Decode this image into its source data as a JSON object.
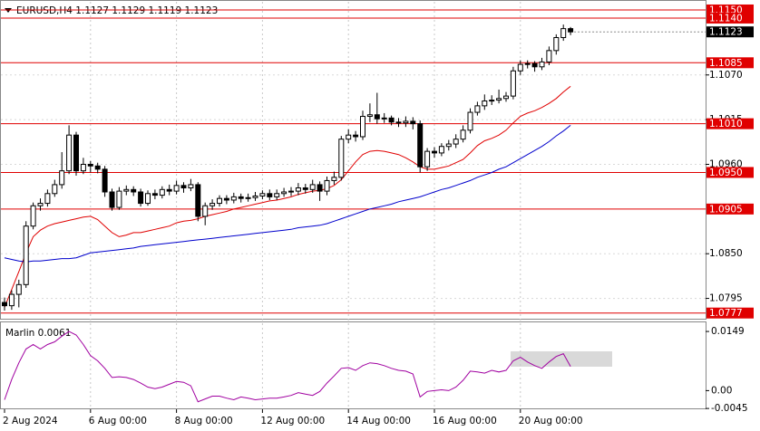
{
  "chart_data": [
    {
      "type": "candlestick",
      "title": "EURUSD,H4  1.1127 1.1129 1.1119 1.1123",
      "categories": [
        "2 Aug 2024",
        null,
        null,
        null,
        null,
        null,
        null,
        null,
        null,
        null,
        null,
        null,
        "6 Aug 00:00",
        null,
        null,
        null,
        null,
        null,
        null,
        null,
        null,
        null,
        null,
        null,
        "8 Aug 00:00",
        null,
        null,
        null,
        null,
        null,
        null,
        null,
        null,
        null,
        null,
        null,
        "12 Aug 00:00",
        null,
        null,
        null,
        null,
        null,
        null,
        null,
        null,
        null,
        null,
        null,
        "14 Aug 00:00",
        null,
        null,
        null,
        null,
        null,
        null,
        null,
        null,
        null,
        null,
        null,
        "16 Aug 00:00",
        null,
        null,
        null,
        null,
        null,
        null,
        null,
        null,
        null,
        null,
        null,
        "20 Aug 00:00",
        null,
        null,
        null,
        null,
        null,
        null,
        null
      ],
      "open": [
        1.079,
        1.0786,
        1.08,
        1.0812,
        1.0884,
        1.0909,
        1.0912,
        1.0924,
        1.0935,
        1.0952,
        1.0996,
        1.0952,
        1.096,
        1.0958,
        1.0954,
        1.0926,
        1.0907,
        1.0927,
        1.0929,
        1.0926,
        1.0912,
        1.0924,
        1.0922,
        1.0929,
        1.0927,
        1.0934,
        1.0931,
        1.0935,
        1.0896,
        1.0909,
        1.0912,
        1.0918,
        1.0916,
        1.092,
        1.0918,
        1.0919,
        1.0921,
        1.0924,
        1.092,
        1.0924,
        1.0926,
        1.0927,
        1.0931,
        1.0929,
        1.0935,
        1.0927,
        1.094,
        1.0944,
        1.0991,
        1.0996,
        1.0994,
        1.1019,
        1.1021,
        1.1016,
        1.1017,
        1.1012,
        1.1011,
        1.1013,
        1.101,
        1.0957,
        1.0976,
        1.0974,
        1.0982,
        1.0985,
        1.0991,
        1.1002,
        1.1024,
        1.1032,
        1.1038,
        1.1039,
        1.1041,
        1.1044,
        1.1075,
        1.1083,
        1.1084,
        1.108,
        1.1086,
        1.11,
        1.1116,
        1.1127
      ],
      "high": [
        1.0796,
        1.0805,
        1.0818,
        1.089,
        1.0913,
        1.0918,
        1.0929,
        1.0941,
        1.0975,
        1.1008,
        1.1,
        1.0968,
        1.0964,
        1.0962,
        1.0958,
        1.093,
        1.0932,
        1.0934,
        1.0933,
        1.093,
        1.0928,
        1.0929,
        1.0933,
        1.0935,
        1.094,
        1.0938,
        1.0942,
        1.0938,
        1.0913,
        1.0917,
        1.0922,
        1.0922,
        1.0925,
        1.0924,
        1.0924,
        1.0926,
        1.0928,
        1.0929,
        1.0929,
        1.0931,
        1.0932,
        1.0937,
        1.0936,
        1.0941,
        1.0939,
        1.0945,
        1.0951,
        1.0995,
        1.1003,
        1.1001,
        1.1026,
        1.1035,
        1.1048,
        1.1023,
        1.102,
        1.1017,
        1.1019,
        1.1018,
        1.1014,
        1.098,
        1.0981,
        1.0986,
        1.099,
        1.0997,
        1.1008,
        1.1029,
        1.1037,
        1.1046,
        1.1045,
        1.1052,
        1.1049,
        1.108,
        1.1088,
        1.1088,
        1.1087,
        1.1091,
        1.1105,
        1.112,
        1.1132,
        1.1129
      ],
      "low": [
        1.078,
        1.0781,
        1.0784,
        1.0808,
        1.088,
        1.0903,
        1.0908,
        1.092,
        1.093,
        1.0948,
        1.0946,
        1.0948,
        1.095,
        1.0949,
        1.092,
        1.0903,
        1.0904,
        1.0922,
        1.0921,
        1.0908,
        1.0909,
        1.0917,
        1.0918,
        1.0922,
        1.0923,
        1.0925,
        1.0927,
        1.089,
        1.0885,
        1.0904,
        1.0908,
        1.0911,
        1.0912,
        1.0913,
        1.0914,
        1.0915,
        1.0917,
        1.0916,
        1.0916,
        1.092,
        1.0921,
        1.0922,
        1.0924,
        1.0925,
        1.0915,
        1.0922,
        1.0935,
        1.094,
        1.0986,
        1.0988,
        1.099,
        1.1012,
        1.101,
        1.1011,
        1.1008,
        1.1006,
        1.1006,
        1.1003,
        1.095,
        1.0952,
        1.0968,
        1.097,
        1.0977,
        1.098,
        1.0987,
        1.0998,
        1.102,
        1.1027,
        1.1033,
        1.1035,
        1.1037,
        1.104,
        1.107,
        1.1078,
        1.1074,
        1.1076,
        1.1082,
        1.1095,
        1.1112,
        1.1119
      ],
      "close": [
        1.0786,
        1.08,
        1.0812,
        1.0884,
        1.0909,
        1.0912,
        1.0924,
        1.0935,
        1.0952,
        1.0996,
        1.0952,
        1.096,
        1.0958,
        1.0954,
        1.0926,
        1.0907,
        1.0927,
        1.0929,
        1.0926,
        1.0912,
        1.0924,
        1.0922,
        1.0929,
        1.0927,
        1.0934,
        1.0931,
        1.0935,
        1.0896,
        1.0909,
        1.0912,
        1.0918,
        1.0916,
        1.092,
        1.0918,
        1.0919,
        1.0921,
        1.0924,
        1.092,
        1.0924,
        1.0926,
        1.0927,
        1.0931,
        1.0929,
        1.0935,
        1.0927,
        1.094,
        1.0944,
        1.0991,
        1.0996,
        1.0994,
        1.1019,
        1.1021,
        1.1016,
        1.1017,
        1.1012,
        1.1011,
        1.1013,
        1.101,
        1.0957,
        1.0976,
        1.0974,
        1.0982,
        1.0985,
        1.0991,
        1.1002,
        1.1024,
        1.1032,
        1.1038,
        1.1039,
        1.1041,
        1.1044,
        1.1075,
        1.1083,
        1.1084,
        1.108,
        1.1086,
        1.11,
        1.1116,
        1.1127,
        1.1123
      ],
      "lines": [
        {
          "color": "#e00000",
          "values": [
            1.0784,
            1.0806,
            1.0828,
            1.0851,
            1.0871,
            1.0879,
            1.0884,
            1.0887,
            1.0889,
            1.0891,
            1.0893,
            1.0895,
            1.0896,
            1.0892,
            1.0884,
            1.0876,
            1.0871,
            1.0873,
            1.0876,
            1.0876,
            1.0878,
            1.088,
            1.0882,
            1.0884,
            1.0888,
            1.089,
            1.0891,
            1.0893,
            1.0896,
            1.0898,
            1.09,
            1.0902,
            1.0905,
            1.0907,
            1.0909,
            1.0911,
            1.0913,
            1.0915,
            1.0916,
            1.0918,
            1.092,
            1.0923,
            1.0925,
            1.0927,
            1.0928,
            1.093,
            1.0934,
            1.0941,
            1.0952,
            1.0963,
            1.0972,
            1.0976,
            1.0977,
            1.0976,
            1.0974,
            1.0972,
            1.0968,
            1.0963,
            1.0957,
            1.0954,
            1.0954,
            1.0956,
            1.0958,
            1.0962,
            1.0966,
            1.0974,
            1.0983,
            1.0989,
            1.0992,
            1.0996,
            1.1002,
            1.1011,
            1.1019,
            1.1023,
            1.1026,
            1.103,
            1.1035,
            1.1041,
            1.1049,
            1.1056
          ]
        },
        {
          "color": "#0000cc",
          "values": [
            1.0845,
            1.0843,
            1.0841,
            1.084,
            1.0841,
            1.0841,
            1.0842,
            1.0843,
            1.0844,
            1.0844,
            1.0845,
            1.0848,
            1.0851,
            1.0852,
            1.0853,
            1.0854,
            1.0855,
            1.0856,
            1.0857,
            1.0859,
            1.086,
            1.0861,
            1.0862,
            1.0863,
            1.0864,
            1.0865,
            1.0866,
            1.0867,
            1.0868,
            1.0869,
            1.087,
            1.0871,
            1.0872,
            1.0873,
            1.0874,
            1.0875,
            1.0876,
            1.0877,
            1.0878,
            1.0879,
            1.088,
            1.0882,
            1.0883,
            1.0884,
            1.0885,
            1.0887,
            1.089,
            1.0893,
            1.0896,
            1.0899,
            1.0902,
            1.0905,
            1.0907,
            1.0909,
            1.0911,
            1.0914,
            1.0916,
            1.0918,
            1.092,
            1.0923,
            1.0926,
            1.0929,
            1.0931,
            1.0934,
            1.0937,
            1.094,
            1.0944,
            1.0947,
            1.095,
            1.0954,
            1.0957,
            1.0962,
            1.0967,
            1.0972,
            1.0977,
            1.0982,
            1.0988,
            1.0995,
            1.1001,
            1.1008
          ]
        }
      ],
      "levels": [
        {
          "value": 1.115,
          "label": "1.1150"
        },
        {
          "value": 1.114,
          "label": "1.1140"
        },
        {
          "value": 1.1085,
          "label": "1.1085"
        },
        {
          "value": 1.101,
          "label": "1.1010"
        },
        {
          "value": 1.095,
          "label": "1.0950"
        },
        {
          "value": 1.0905,
          "label": "1.0905"
        },
        {
          "value": 1.0777,
          "label": "1.0777"
        }
      ],
      "level_color": "#e00000",
      "ylim": [
        1.077,
        1.116
      ],
      "yticks": [
        1.0795,
        {
          "value": 1.085,
          "label": "1.0850"
        },
        {
          "value": 1.096,
          "label": "1.0960"
        },
        1.1015,
        {
          "value": 1.107,
          "label": "1.1070"
        }
      ],
      "grid": true
    },
    {
      "type": "line",
      "title": "Marlin 0.0061",
      "color": "#a000a0",
      "values": [
        -0.0023,
        0.0028,
        0.007,
        0.0105,
        0.0116,
        0.0105,
        0.0116,
        0.0123,
        0.0137,
        0.0149,
        0.014,
        0.0116,
        0.0088,
        0.0075,
        0.0056,
        0.0033,
        0.0035,
        0.0033,
        0.0028,
        0.0019,
        0.0009,
        0.0005,
        0.0009,
        0.0016,
        0.0023,
        0.0021,
        0.0012,
        -0.0028,
        -0.0021,
        -0.0014,
        -0.0014,
        -0.0019,
        -0.0023,
        -0.0016,
        -0.0019,
        -0.0023,
        -0.0021,
        -0.0019,
        -0.0019,
        -0.0016,
        -0.0012,
        -0.0005,
        -0.0009,
        -0.0012,
        -0.0002,
        0.0019,
        0.0037,
        0.0056,
        0.0058,
        0.0051,
        0.0063,
        0.007,
        0.0068,
        0.0063,
        0.0056,
        0.0051,
        0.0049,
        0.0042,
        -0.0016,
        -0.0002,
        0.0,
        0.0002,
        0.0,
        0.0009,
        0.0026,
        0.0049,
        0.0047,
        0.0044,
        0.0051,
        0.0047,
        0.0051,
        0.0075,
        0.0084,
        0.0072,
        0.0063,
        0.0056,
        0.0072,
        0.0086,
        0.0093,
        0.0061
      ],
      "ylim": [
        -0.0047,
        0.0172
      ],
      "yticks": [
        0.0149,
        {
          "value": 0,
          "label": "0.00"
        },
        -0.0045
      ]
    }
  ]
}
